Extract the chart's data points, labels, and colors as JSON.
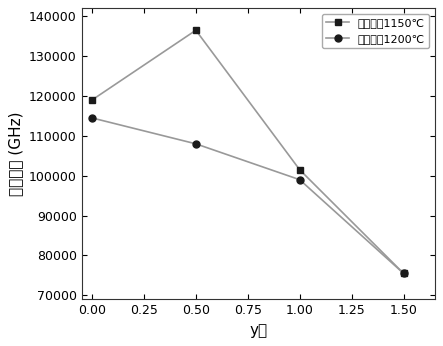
{
  "x_values": [
    0.0,
    0.5,
    1.0,
    1.5
  ],
  "series_1150": [
    119000,
    136500,
    101500,
    75500
  ],
  "series_1200": [
    114500,
    108000,
    99000,
    75500
  ],
  "label_1150": "烧结温剠1150℃",
  "label_1200": "烧结温剠1200℃",
  "xlabel": "y値",
  "ylabel": "品质因数 (GHz)",
  "xlim": [
    -0.05,
    1.65
  ],
  "ylim": [
    69000,
    142000
  ],
  "yticks": [
    70000,
    80000,
    90000,
    100000,
    110000,
    120000,
    130000,
    140000
  ],
  "xticks": [
    0.0,
    0.25,
    0.5,
    0.75,
    1.0,
    1.25,
    1.5
  ],
  "line_color": "#999999",
  "marker_color": "#1a1a1a",
  "background_color": "#ffffff",
  "legend_edge_color": "#aaaaaa",
  "spine_color": "#333333"
}
